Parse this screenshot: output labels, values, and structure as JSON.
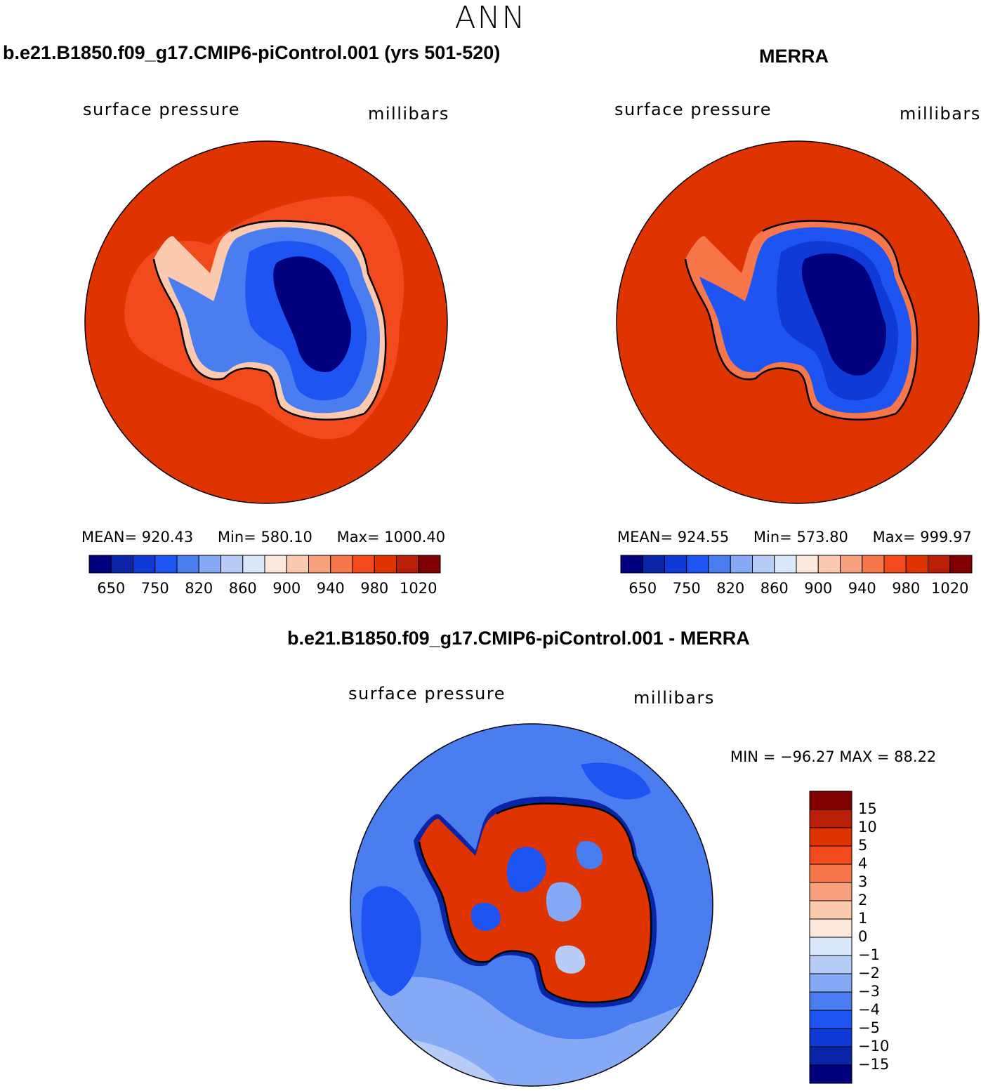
{
  "page_title": "ANN",
  "panels": [
    {
      "title": "b.e21.B1850.f09_g17.CMIP6-piControl.001 (yrs 501-520)",
      "left_label": "surface pressure",
      "right_label": "millibars",
      "stats": {
        "mean": "MEAN= 920.43",
        "min": "Min= 580.10",
        "max": "Max= 1000.40"
      }
    },
    {
      "title": "MERRA",
      "left_label": "surface pressure",
      "right_label": "millibars",
      "stats": {
        "mean": "MEAN= 924.55",
        "min": "Min= 573.80",
        "max": "Max= 999.97"
      }
    },
    {
      "title": "b.e21.B1850.f09_g17.CMIP6-piControl.001 - MERRA",
      "left_label": "surface pressure",
      "right_label": "millibars",
      "stats": {
        "minmax": "MIN = −96.27 MAX =  88.22"
      }
    }
  ],
  "chart_data": [
    {
      "type": "heatmap",
      "projection": "south-polar-stereographic",
      "title": "b.e21.B1850.f09_g17.CMIP6-piControl.001 (yrs 501-520)",
      "variable": "surface pressure",
      "units": "millibars",
      "mean": 920.43,
      "min": 580.1,
      "max": 1000.4,
      "colorbar": {
        "orientation": "horizontal",
        "levels": [
          650,
          700,
          750,
          800,
          820,
          840,
          860,
          880,
          900,
          920,
          940,
          960,
          980,
          1000,
          1020
        ],
        "tick_labels": [
          "650",
          "750",
          "820",
          "860",
          "900",
          "940",
          "980",
          "1020"
        ],
        "colors": [
          "#00007f",
          "#0a24a8",
          "#0f3ad6",
          "#1e55f2",
          "#4a7df0",
          "#86a9f5",
          "#b7cdf8",
          "#d9e8fb",
          "#fde9db",
          "#fccaae",
          "#f9a17e",
          "#f7764a",
          "#f24a1c",
          "#df3300",
          "#b91f06",
          "#800000"
        ]
      }
    },
    {
      "type": "heatmap",
      "projection": "south-polar-stereographic",
      "title": "MERRA",
      "variable": "surface pressure",
      "units": "millibars",
      "mean": 924.55,
      "min": 573.8,
      "max": 999.97,
      "colorbar": {
        "orientation": "horizontal",
        "levels": [
          650,
          700,
          750,
          800,
          820,
          840,
          860,
          880,
          900,
          920,
          940,
          960,
          980,
          1000,
          1020
        ],
        "tick_labels": [
          "650",
          "750",
          "820",
          "860",
          "900",
          "940",
          "980",
          "1020"
        ],
        "colors": [
          "#00007f",
          "#0a24a8",
          "#0f3ad6",
          "#1e55f2",
          "#4a7df0",
          "#86a9f5",
          "#b7cdf8",
          "#d9e8fb",
          "#fde9db",
          "#fccaae",
          "#f9a17e",
          "#f7764a",
          "#f24a1c",
          "#df3300",
          "#b91f06",
          "#800000"
        ]
      }
    },
    {
      "type": "heatmap",
      "projection": "south-polar-stereographic",
      "title": "b.e21.B1850.f09_g17.CMIP6-piControl.001 - MERRA",
      "variable": "surface pressure",
      "units": "millibars",
      "min": -96.27,
      "max": 88.22,
      "colorbar": {
        "orientation": "vertical",
        "levels": [
          15,
          10,
          5,
          4,
          3,
          2,
          1,
          0,
          -1,
          -2,
          -3,
          -4,
          -5,
          -10,
          -15
        ],
        "tick_labels": [
          "15",
          "10",
          "5",
          "4",
          "3",
          "2",
          "1",
          "0",
          "−1",
          "−2",
          "−3",
          "−4",
          "−5",
          "−10",
          "−15"
        ],
        "colors_top_to_bottom": [
          "#800000",
          "#b91f06",
          "#df3300",
          "#f24a1c",
          "#f7764a",
          "#f9a17e",
          "#fccaae",
          "#fde9db",
          "#d9e8fb",
          "#b7cdf8",
          "#86a9f5",
          "#4a7df0",
          "#1e55f2",
          "#0f3ad6",
          "#0a24a8",
          "#00007f"
        ]
      }
    }
  ]
}
